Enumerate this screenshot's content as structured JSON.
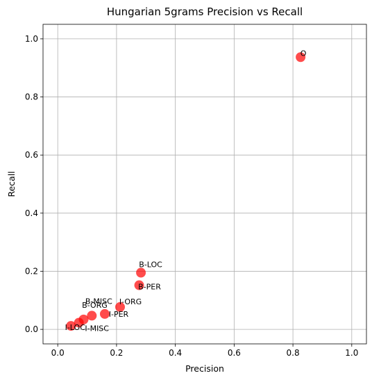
{
  "chart_data": {
    "type": "scatter",
    "title": "Hungarian 5grams Precision vs Recall",
    "xlabel": "Precision",
    "ylabel": "Recall",
    "xlim": [
      -0.05,
      1.05
    ],
    "ylim": [
      -0.05,
      1.05
    ],
    "xticks": [
      "0.0",
      "0.2",
      "0.4",
      "0.6",
      "0.8",
      "1.0"
    ],
    "yticks": [
      "0.0",
      "0.2",
      "0.4",
      "0.6",
      "0.8",
      "1.0"
    ],
    "grid": true,
    "marker_color": "#ff0000",
    "marker_alpha": 0.7,
    "points": [
      {
        "label": "O",
        "x": 0.826,
        "y": 0.937
      },
      {
        "label": "B-LOC",
        "x": 0.283,
        "y": 0.195
      },
      {
        "label": "B-PER",
        "x": 0.277,
        "y": 0.152
      },
      {
        "label": "I-ORG",
        "x": 0.212,
        "y": 0.077
      },
      {
        "label": "I-PER",
        "x": 0.16,
        "y": 0.053
      },
      {
        "label": "B-MISC",
        "x": 0.116,
        "y": 0.047
      },
      {
        "label": "B-ORG",
        "x": 0.088,
        "y": 0.034
      },
      {
        "label": "I-MISC",
        "x": 0.072,
        "y": 0.023
      },
      {
        "label": "I-LOC",
        "x": 0.045,
        "y": 0.012
      }
    ]
  }
}
